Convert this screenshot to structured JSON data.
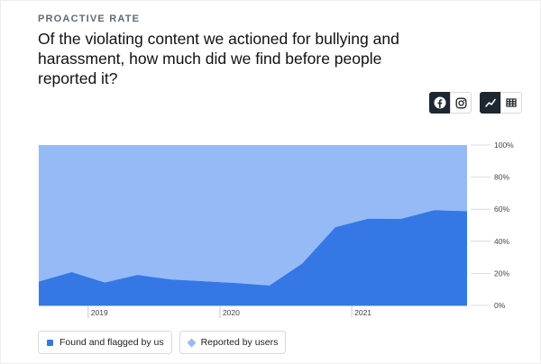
{
  "header": {
    "kicker": "PROACTIVE RATE",
    "title": "Of the violating content we actioned for bullying and harassment, how much did we find before people reported it?"
  },
  "controls": {
    "platform_toggle": [
      {
        "name": "facebook-icon",
        "active": true
      },
      {
        "name": "instagram-icon",
        "active": false
      }
    ],
    "view_toggle": [
      {
        "name": "line-chart-icon",
        "active": true
      },
      {
        "name": "table-icon",
        "active": false
      }
    ]
  },
  "legend": {
    "found_label": "Found and flagged by us",
    "reported_label": "Reported by users"
  },
  "colors": {
    "found": "#3578e5",
    "reported": "#96baf5",
    "active_button": "#1d2730"
  },
  "chart_data": {
    "type": "area",
    "title": "",
    "x": [
      "2018 Q3",
      "2018 Q4",
      "2019 Q1",
      "2019 Q2",
      "2019 Q3",
      "2019 Q4",
      "2020 Q1",
      "2020 Q2",
      "2020 Q3",
      "2020 Q4",
      "2021 Q1",
      "2021 Q2",
      "2021 Q3",
      "2021 Q4"
    ],
    "series": [
      {
        "name": "Found and flagged by us",
        "values": [
          14.9,
          20.8,
          14.3,
          19.0,
          16.2,
          15.1,
          14.0,
          12.4,
          26.2,
          48.8,
          54.1,
          54.0,
          59.4,
          58.8
        ]
      },
      {
        "name": "Reported by users",
        "values": [
          85.1,
          79.2,
          85.7,
          81.0,
          83.8,
          84.9,
          86.0,
          87.6,
          73.8,
          51.2,
          45.9,
          46.0,
          40.6,
          41.2
        ]
      }
    ],
    "x_ticks": [
      "2019",
      "2020",
      "2021"
    ],
    "y_ticks": [
      "0%",
      "20%",
      "40%",
      "60%",
      "80%",
      "100%"
    ],
    "ylim": [
      0,
      100
    ],
    "stacked": true,
    "legend_position": "bottom-left"
  }
}
